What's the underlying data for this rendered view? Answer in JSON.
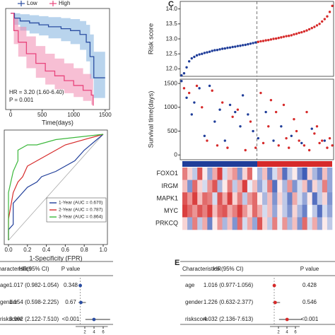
{
  "chart_data": [
    {
      "type": "km",
      "xlabel": "Time(days)",
      "xlim": [
        -80,
        1570
      ],
      "ylim": [
        0,
        1.05
      ],
      "xticks": [
        0,
        500,
        1000,
        1500
      ],
      "annotations": [
        "HR = 3.20 (1.60-6.40)",
        "P = 0.001"
      ],
      "series": [
        {
          "name": "Low",
          "color": "#2b4ea2",
          "band_color": "#7fb0de",
          "x": [
            0,
            60,
            150,
            300,
            450,
            600,
            800,
            950,
            1100,
            1200,
            1260,
            1320,
            1500
          ],
          "values": [
            1,
            0.95,
            0.92,
            0.9,
            0.88,
            0.86,
            0.84,
            0.82,
            0.78,
            0.7,
            0.55,
            0.33,
            0.33
          ],
          "upper": [
            1,
            1,
            0.99,
            0.98,
            0.97,
            0.96,
            0.95,
            0.94,
            0.92,
            0.88,
            0.78,
            0.6,
            0.6
          ],
          "lower": [
            1,
            0.88,
            0.82,
            0.79,
            0.77,
            0.74,
            0.71,
            0.68,
            0.62,
            0.5,
            0.32,
            0.12,
            0.12
          ]
        },
        {
          "name": "High",
          "color": "#e8457c",
          "band_color": "#f08ab0",
          "x": [
            0,
            50,
            120,
            250,
            400,
            550,
            700,
            850,
            1000,
            1150,
            1280,
            1310
          ],
          "values": [
            1,
            0.82,
            0.7,
            0.58,
            0.48,
            0.4,
            0.35,
            0.3,
            0.25,
            0.2,
            0.15,
            0.04
          ],
          "upper": [
            1,
            0.95,
            0.86,
            0.76,
            0.66,
            0.58,
            0.53,
            0.48,
            0.43,
            0.37,
            0.32,
            0.15
          ],
          "lower": [
            1,
            0.68,
            0.55,
            0.43,
            0.33,
            0.26,
            0.21,
            0.17,
            0.13,
            0.09,
            0.05,
            0.0
          ]
        }
      ]
    },
    {
      "type": "roc",
      "xlabel": "1-Specificity (FPR)",
      "xlim": [
        0,
        1
      ],
      "ylim": [
        0,
        1
      ],
      "xticks": [
        {
          "value": 0,
          "label": "0.0"
        },
        0.2,
        0.4,
        0.6,
        0.8,
        {
          "value": 1,
          "label": "1.0"
        }
      ],
      "series": [
        {
          "name": "1-Year (AUC = 0.670)",
          "color": "#1f3d99",
          "x": [
            0,
            0,
            0.05,
            0.05,
            0.1,
            0.15,
            0.2,
            0.3,
            0.35,
            0.5,
            0.6,
            0.7,
            0.8,
            1
          ],
          "values": [
            0,
            0.1,
            0.15,
            0.35,
            0.4,
            0.45,
            0.5,
            0.55,
            0.6,
            0.65,
            0.7,
            0.75,
            0.85,
            1
          ]
        },
        {
          "name": "2-Year (AUC = 0.787)",
          "color": "#d62a2a",
          "x": [
            0,
            0,
            0.05,
            0.1,
            0.15,
            0.2,
            0.3,
            0.4,
            0.5,
            0.6,
            1
          ],
          "values": [
            0,
            0.2,
            0.45,
            0.55,
            0.6,
            0.7,
            0.75,
            0.8,
            0.85,
            0.9,
            1
          ]
        },
        {
          "name": "3-Year (AUC = 0.864)",
          "color": "#3cb83c",
          "x": [
            0,
            0,
            0.05,
            0.1,
            0.1,
            0.2,
            0.3,
            0.5,
            1
          ],
          "values": [
            0,
            0.45,
            0.65,
            0.75,
            0.85,
            0.9,
            0.9,
            0.95,
            1
          ]
        }
      ]
    },
    {
      "type": "forest",
      "color": "#2b4ea2",
      "headers": [
        "Characteristics",
        "HR(95% CI)",
        "P value"
      ],
      "categories": [
        "age",
        "gender",
        "riskscore"
      ],
      "values": [
        1.017,
        1.154,
        3.992
      ],
      "lower": [
        0.982,
        0.598,
        2.122
      ],
      "upper": [
        1.054,
        2.225,
        7.51
      ],
      "value_labels": [
        "1.017 (0.982-1.054)",
        "1.154 (0.598-2.225)",
        "3.992 (2.122-7.510)"
      ],
      "p_values": [
        "0.348",
        "0.67",
        "<0.001"
      ],
      "reference_line": 1,
      "xlim": [
        0,
        7
      ],
      "xticks": [
        2,
        4,
        6
      ]
    },
    {
      "type": "scatter",
      "panel": "C",
      "ylabel": "Risk score",
      "ylim": [
        11.75,
        14.25
      ],
      "yticks": [
        {
          "value": 12,
          "label": "12.0"
        },
        12.5,
        {
          "value": 13,
          "label": "13.0"
        },
        13.5,
        {
          "value": 14,
          "label": "14.0"
        }
      ],
      "series": [
        {
          "color": "#1f3d99",
          "values": [
            11.78,
            11.85,
            12.05,
            12.25,
            12.35,
            12.4,
            12.45,
            12.48,
            12.5,
            12.53,
            12.55,
            12.57,
            12.6,
            12.62,
            12.63,
            12.65,
            12.67,
            12.68,
            12.7,
            12.71,
            12.73,
            12.74,
            12.76,
            12.77,
            12.79,
            12.8,
            12.82,
            12.84,
            12.86,
            12.88
          ]
        },
        {
          "color": "#d62a2a",
          "values": [
            12.9,
            12.92,
            12.93,
            12.95,
            12.96,
            12.98,
            13.0,
            13.01,
            13.03,
            13.05,
            13.07,
            13.09,
            13.1,
            13.12,
            13.15,
            13.17,
            13.2,
            13.22,
            13.25,
            13.28,
            13.32,
            13.36,
            13.4,
            13.45,
            13.5,
            13.58,
            13.66,
            13.75,
            13.9,
            14.1
          ]
        }
      ]
    },
    {
      "type": "scatter",
      "ylabel": "Survival time(days)",
      "xlim": [
        0.5,
        60.5
      ],
      "ylim": [
        -100,
        1590
      ],
      "yticks": [
        0,
        500,
        1000,
        1500
      ],
      "series": [
        {
          "color": "#1f3d99",
          "x": [
            1,
            3,
            5,
            6,
            8,
            10,
            12,
            14,
            16,
            18,
            20,
            22,
            24,
            25,
            27,
            29,
            31,
            34,
            37,
            40,
            44,
            48,
            52,
            57
          ],
          "values": [
            1550,
            1200,
            850,
            1100,
            1400,
            400,
            1450,
            700,
            950,
            300,
            1050,
            900,
            600,
            1250,
            850,
            500,
            350,
            900,
            300,
            600,
            400,
            250,
            550,
            300
          ]
        },
        {
          "color": "#d62a2a",
          "x": [
            2,
            4,
            7,
            9,
            11,
            13,
            15,
            17,
            19,
            21,
            23,
            26,
            28,
            30,
            32,
            33,
            35,
            36,
            38,
            39,
            41,
            42,
            43,
            45,
            46,
            47,
            49,
            50,
            51,
            53,
            54,
            55,
            56,
            58,
            59,
            60
          ],
          "values": [
            1400,
            1300,
            1450,
            1000,
            300,
            1350,
            200,
            1100,
            150,
            800,
            950,
            100,
            700,
            150,
            1300,
            250,
            600,
            1150,
            900,
            200,
            1050,
            350,
            150,
            750,
            500,
            300,
            200,
            900,
            100,
            450,
            600,
            250,
            300,
            150,
            350,
            200
          ]
        }
      ]
    },
    {
      "type": "heatmap",
      "zlim": [
        -1,
        1
      ],
      "colors": [
        "#2a4cb0",
        "#ffffff",
        "#d62a2a"
      ],
      "rows": [
        "FOXO1",
        "IRGM",
        "MAPK1",
        "MYC",
        "PRKCQ"
      ],
      "values": [
        [
          0.6,
          0.2,
          -0.3,
          0.8,
          0.1,
          -0.5,
          0.4,
          0.9,
          -0.2,
          0.3,
          0.5,
          -0.6,
          0.2,
          0.7,
          0.0,
          -0.4,
          0.3,
          -0.7,
          -0.2,
          0.4,
          -0.8,
          -0.3,
          0.1,
          -0.6,
          -0.9,
          0.2,
          -0.4,
          -0.7,
          0.3,
          -0.5
        ],
        [
          0.3,
          -0.6,
          0.7,
          0.2,
          -0.2,
          0.5,
          0.8,
          -0.4,
          0.1,
          0.6,
          -0.3,
          0.4,
          0.9,
          -0.1,
          0.3,
          -0.5,
          -0.2,
          0.6,
          -0.8,
          0.1,
          -0.4,
          0.5,
          -0.6,
          -0.2,
          0.3,
          -0.7,
          0.2,
          -0.3,
          0.6,
          -0.5
        ],
        [
          0.8,
          0.5,
          0.9,
          0.3,
          0.7,
          0.6,
          -0.2,
          0.8,
          0.4,
          0.9,
          0.2,
          0.6,
          -0.3,
          0.5,
          0.7,
          0.1,
          -0.4,
          0.3,
          -0.6,
          0.2,
          -0.3,
          -0.7,
          0.4,
          -0.2,
          -0.5,
          0.1,
          -0.8,
          -0.3,
          0.2,
          -0.6
        ],
        [
          0.9,
          0.7,
          0.5,
          0.8,
          0.6,
          0.9,
          0.3,
          0.7,
          0.8,
          0.4,
          0.6,
          0.9,
          0.5,
          0.2,
          0.7,
          0.4,
          -0.2,
          0.3,
          -0.5,
          0.1,
          -0.3,
          -0.6,
          0.2,
          -0.4,
          -0.7,
          0.0,
          -0.3,
          -0.8,
          -0.2,
          -0.5
        ],
        [
          0.2,
          -0.5,
          0.6,
          -0.3,
          0.4,
          -0.7,
          0.1,
          0.5,
          -0.4,
          0.3,
          -0.6,
          0.7,
          -0.2,
          0.4,
          -0.5,
          0.8,
          0.2,
          -0.3,
          0.6,
          -0.1,
          0.5,
          -0.4,
          0.3,
          -0.6,
          0.7,
          -0.2,
          0.4,
          -0.5,
          0.1,
          -0.3
        ]
      ]
    },
    {
      "type": "forest",
      "panel": "E",
      "color": "#d62a2a",
      "headers": [
        "Characteristics",
        "HR(95% CI)",
        "P value"
      ],
      "categories": [
        "age",
        "gender",
        "riskscore"
      ],
      "values": [
        1.016,
        1.226,
        4.032
      ],
      "lower": [
        0.977,
        0.632,
        2.136
      ],
      "upper": [
        1.056,
        2.377,
        7.613
      ],
      "value_labels": [
        "1.016 (0.977-1.056)",
        "1.226 (0.632-2.377)",
        "4.032 (2.136-7.613)"
      ],
      "p_values": [
        "0.428",
        "0.546",
        "<0.001"
      ],
      "reference_line": 1,
      "xlim": [
        0,
        7
      ],
      "xticks": [
        2,
        4,
        6
      ]
    }
  ]
}
